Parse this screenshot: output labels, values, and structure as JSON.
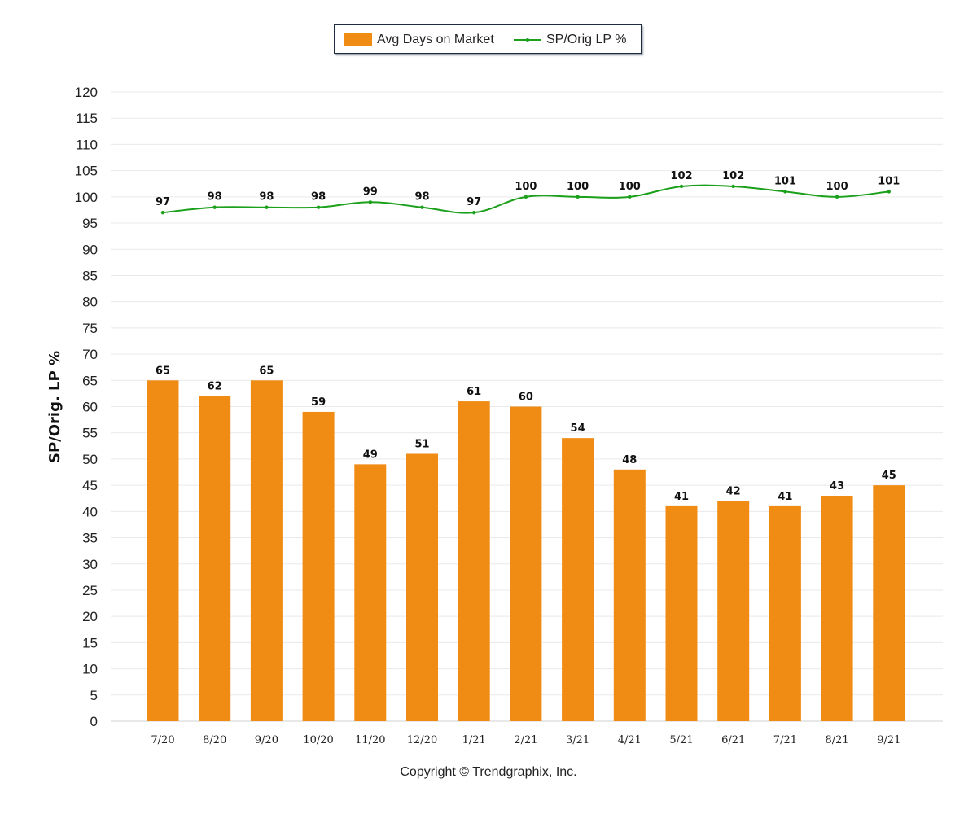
{
  "legend": {
    "bar_label": "Avg Days on Market",
    "line_label": "SP/Orig LP %"
  },
  "copyright": "Copyright © Trendgraphix, Inc.",
  "colors": {
    "bar": "#f08c14",
    "line": "#1aa01a",
    "grid": "#e9e9e9"
  },
  "chart_data": {
    "type": "bar",
    "ylabel": "SP/Orig. LP %",
    "xlabel": "",
    "ylim": [
      0,
      120
    ],
    "ytick_step": 5,
    "grid": true,
    "legend_position": "top-center",
    "categories": [
      "7/20",
      "8/20",
      "9/20",
      "10/20",
      "11/20",
      "12/20",
      "1/21",
      "2/21",
      "3/21",
      "4/21",
      "5/21",
      "6/21",
      "7/21",
      "8/21",
      "9/21"
    ],
    "series": [
      {
        "name": "Avg Days on Market",
        "type": "bar",
        "values": [
          65,
          62,
          65,
          59,
          49,
          51,
          61,
          60,
          54,
          48,
          41,
          42,
          41,
          43,
          45
        ]
      },
      {
        "name": "SP/Orig LP %",
        "type": "line",
        "values": [
          97,
          98,
          98,
          98,
          99,
          98,
          97,
          100,
          100,
          100,
          102,
          102,
          101,
          100,
          101
        ]
      }
    ]
  }
}
